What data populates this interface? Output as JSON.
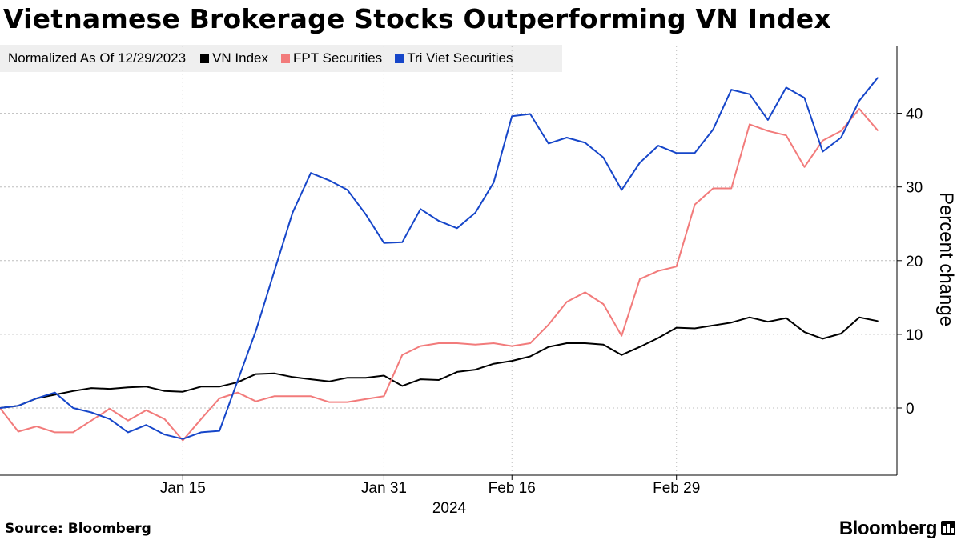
{
  "chart_data": {
    "type": "line",
    "title": "Vietnamese Brokerage Stocks Outperforming VN Index",
    "note": "Normalized As Of 12/29/2023",
    "ylabel": "Percent change",
    "xlabel": "2024",
    "ylim": [
      -9,
      50
    ],
    "y_ticks": [
      0,
      10,
      20,
      30,
      40
    ],
    "x_ticks": [
      {
        "label": "Jan 15",
        "index": 10
      },
      {
        "label": "Jan 31",
        "index": 21
      },
      {
        "label": "Feb 16",
        "index": 28
      },
      {
        "label": "Feb 29",
        "index": 37
      }
    ],
    "source": "Source: Bloomberg",
    "brand": "Bloomberg",
    "series": [
      {
        "name": "VN Index",
        "color": "#000000",
        "values": [
          0,
          0.3,
          1.3,
          1.8,
          2.3,
          2.7,
          2.6,
          2.8,
          2.9,
          2.3,
          2.2,
          2.9,
          2.9,
          3.5,
          4.6,
          4.7,
          4.2,
          3.9,
          3.6,
          4.1,
          4.1,
          4.4,
          3.0,
          3.9,
          3.8,
          4.9,
          5.2,
          6.0,
          6.4,
          7.0,
          8.3,
          8.8,
          8.8,
          8.6,
          7.2,
          8.3,
          9.5,
          10.9,
          10.8,
          11.2,
          11.6,
          12.3,
          11.7,
          12.2,
          10.3,
          9.4,
          10.1,
          12.3,
          11.8
        ]
      },
      {
        "name": "FPT Securities",
        "color": "#f27b7b",
        "values": [
          0,
          -3.2,
          -2.5,
          -3.3,
          -3.3,
          -1.7,
          -0.1,
          -1.7,
          -0.3,
          -1.5,
          -4.4,
          -1.5,
          1.3,
          2.1,
          0.9,
          1.6,
          1.6,
          1.6,
          0.8,
          0.8,
          1.2,
          1.6,
          7.2,
          8.4,
          8.8,
          8.8,
          8.6,
          8.8,
          8.4,
          8.8,
          11.3,
          14.4,
          15.7,
          14.1,
          9.8,
          17.5,
          18.6,
          19.2,
          27.6,
          29.8,
          29.8,
          38.5,
          37.6,
          37.0,
          32.7,
          36.3,
          37.6,
          40.6,
          37.7
        ]
      },
      {
        "name": "Tri Viet Securities",
        "color": "#1646c9",
        "values": [
          0,
          0.3,
          1.3,
          2.1,
          0,
          -0.6,
          -1.5,
          -3.3,
          -2.3,
          -3.6,
          -4.2,
          -3.3,
          -3.1,
          3.7,
          10.5,
          18.5,
          26.5,
          31.9,
          30.9,
          29.6,
          26.3,
          22.4,
          22.5,
          27.0,
          25.4,
          24.4,
          26.5,
          30.6,
          39.6,
          39.9,
          35.9,
          36.7,
          36.0,
          34.0,
          29.6,
          33.3,
          35.6,
          34.6,
          34.6,
          37.8,
          43.2,
          42.6,
          39.1,
          43.5,
          42.1,
          34.8,
          36.7,
          41.7,
          44.8
        ]
      }
    ]
  }
}
